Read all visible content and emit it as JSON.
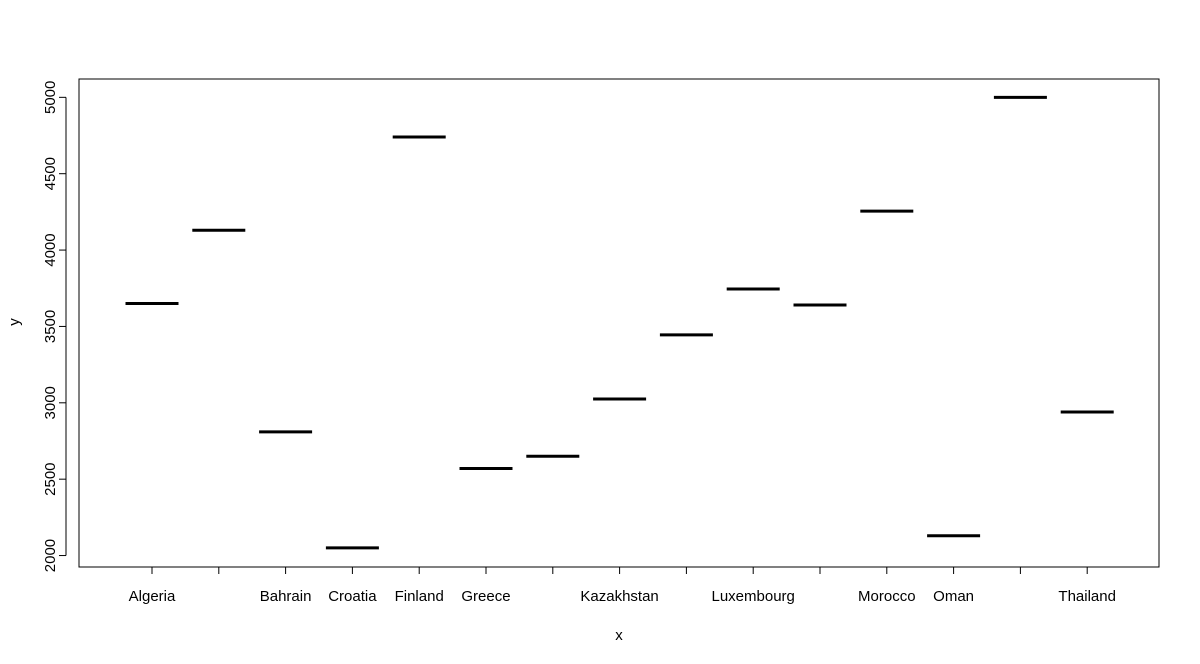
{
  "chart_data": {
    "type": "bar",
    "style": "boxplot-median-lines",
    "categories": [
      "Algeria",
      "",
      "Bahrain",
      "Croatia",
      "Finland",
      "Greece",
      "",
      "Kazakhstan",
      "",
      "Luxembourg",
      "",
      "Morocco",
      "Oman",
      "",
      "Thailand"
    ],
    "values": [
      3650,
      4130,
      2810,
      2050,
      4740,
      2570,
      2650,
      3025,
      3445,
      3745,
      3640,
      4255,
      2130,
      5000,
      2940
    ],
    "title": "",
    "xlabel": "x",
    "ylabel": "y",
    "ylim": [
      1925,
      5120
    ],
    "yticks": [
      2000,
      2500,
      3000,
      3500,
      4000,
      4500,
      5000
    ],
    "grid": false,
    "legend": "none",
    "colors": {
      "line": "#000000",
      "background": "#ffffff"
    }
  }
}
